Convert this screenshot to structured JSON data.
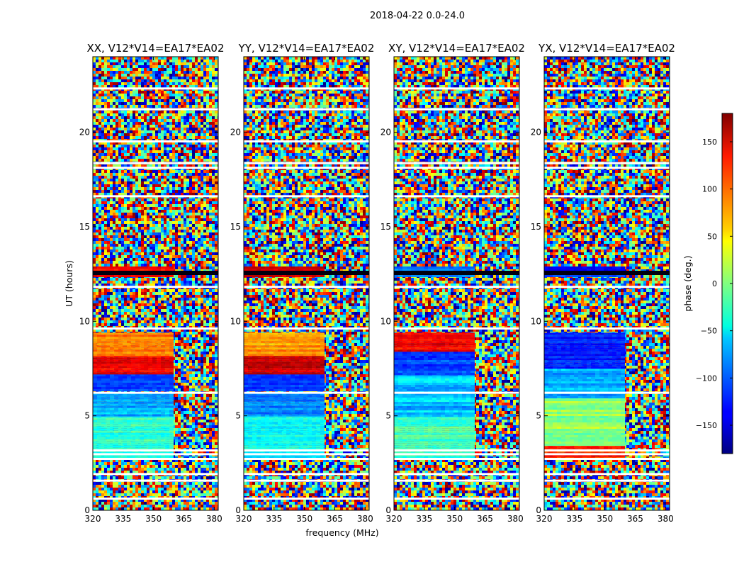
{
  "suptitle": "2018-04-22 0.0-24.0",
  "chart_data": {
    "type": "heatmap",
    "title": "2018-04-22 0.0-24.0",
    "xlabel": "frequency (MHz)",
    "ylabel": "UT (hours)",
    "xlim": [
      320,
      382
    ],
    "ylim": [
      0,
      24
    ],
    "xticks": [
      320,
      335,
      350,
      365,
      380
    ],
    "yticks": [
      0,
      5,
      10,
      15,
      20
    ],
    "colormap": "jet",
    "panels": [
      {
        "title": "XX, V12*V14=EA17*EA02",
        "pol": "XX"
      },
      {
        "title": "YY, V12*V14=EA17*EA02",
        "pol": "YY"
      },
      {
        "title": "XY, V12*V14=EA17*EA02",
        "pol": "XY"
      },
      {
        "title": "YX, V12*V14=EA17*EA02",
        "pol": "YX"
      }
    ],
    "flagged_ut_hours": [
      0.6,
      1.55,
      1.9,
      2.7,
      2.95,
      3.15,
      6.2,
      9.6,
      11.8,
      12.55,
      16.6,
      18.1,
      18.35,
      19.5,
      21.2,
      22.3
    ],
    "colorbar": {
      "label": "phase (deg.)",
      "vmin": -180,
      "vmax": 180,
      "ticks": [
        150,
        100,
        50,
        0,
        -50,
        -100,
        -150
      ],
      "tick_labels": [
        "150",
        "100",
        "50",
        "0",
        "−50",
        "−100",
        "−150"
      ]
    }
  }
}
